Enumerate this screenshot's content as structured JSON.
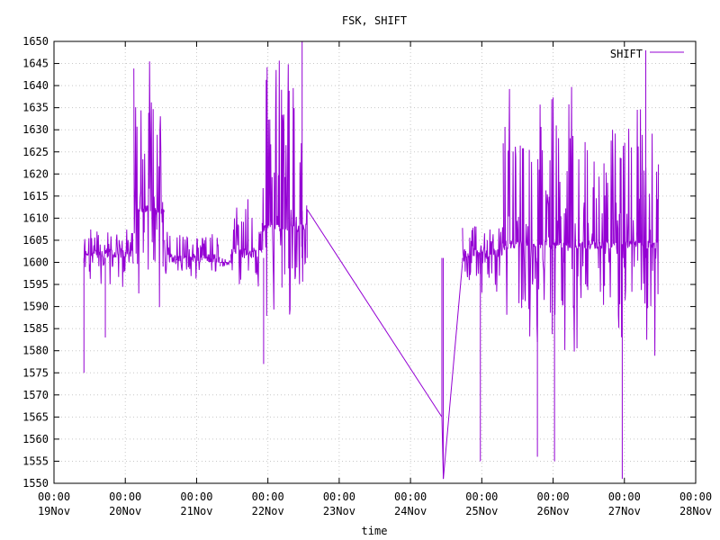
{
  "chart_data": {
    "type": "line",
    "title": "FSK, SHIFT",
    "xlabel": "time",
    "ylabel": "",
    "ylim": [
      1550,
      1650
    ],
    "yticks": [
      1550,
      1555,
      1560,
      1565,
      1570,
      1575,
      1580,
      1585,
      1590,
      1595,
      1600,
      1605,
      1610,
      1615,
      1620,
      1625,
      1630,
      1635,
      1640,
      1645,
      1650
    ],
    "xlim_days": [
      19,
      28
    ],
    "xticks": [
      {
        "day": 19,
        "time": "00:00",
        "date": "19Nov"
      },
      {
        "day": 20,
        "time": "00:00",
        "date": "20Nov"
      },
      {
        "day": 21,
        "time": "00:00",
        "date": "21Nov"
      },
      {
        "day": 22,
        "time": "00:00",
        "date": "22Nov"
      },
      {
        "day": 23,
        "time": "00:00",
        "date": "23Nov"
      },
      {
        "day": 24,
        "time": "00:00",
        "date": "24Nov"
      },
      {
        "day": 25,
        "time": "00:00",
        "date": "25Nov"
      },
      {
        "day": 26,
        "time": "00:00",
        "date": "26Nov"
      },
      {
        "day": 27,
        "time": "00:00",
        "date": "27Nov"
      },
      {
        "day": 28,
        "time": "00:00",
        "date": "28Nov"
      }
    ],
    "grid": true,
    "legend_position": "top-right",
    "series": [
      {
        "name": "SHIFT",
        "color": "#9400d3",
        "segments": [
          {
            "start_day": 19.42,
            "end_day": 20.12,
            "median": 1602,
            "lo": 1597,
            "hi": 1607
          },
          {
            "start_day": 20.12,
            "end_day": 20.55,
            "median": 1612,
            "lo": 1598,
            "hi": 1638
          },
          {
            "start_day": 20.55,
            "end_day": 21.33,
            "median": 1601,
            "lo": 1598,
            "hi": 1606
          },
          {
            "start_day": 21.33,
            "end_day": 21.48,
            "median": 1600,
            "lo": 1600,
            "hi": 1600
          },
          {
            "start_day": 21.48,
            "end_day": 21.92,
            "median": 1602,
            "lo": 1597,
            "hi": 1612
          },
          {
            "start_day": 21.92,
            "end_day": 22.55,
            "median": 1608,
            "lo": 1595,
            "hi": 1640
          },
          {
            "start_day": 24.73,
            "end_day": 25.3,
            "median": 1602,
            "lo": 1596,
            "hi": 1608
          },
          {
            "start_day": 25.3,
            "end_day": 27.48,
            "median": 1604,
            "lo": 1588,
            "hi": 1632
          }
        ],
        "notable_points": [
          {
            "day": 19.42,
            "value": 1575
          },
          {
            "day": 19.72,
            "value": 1583
          },
          {
            "day": 21.94,
            "value": 1577
          },
          {
            "day": 22.48,
            "value": 1650
          },
          {
            "day": 22.55,
            "value": 1612
          },
          {
            "day": 24.44,
            "value": 1565
          },
          {
            "day": 24.46,
            "value": 1551
          },
          {
            "day": 24.73,
            "value": 1600
          },
          {
            "day": 24.98,
            "value": 1555
          },
          {
            "day": 25.78,
            "value": 1556
          },
          {
            "day": 26.02,
            "value": 1555
          },
          {
            "day": 26.97,
            "value": 1551
          },
          {
            "day": 27.3,
            "value": 1648
          }
        ]
      }
    ]
  }
}
